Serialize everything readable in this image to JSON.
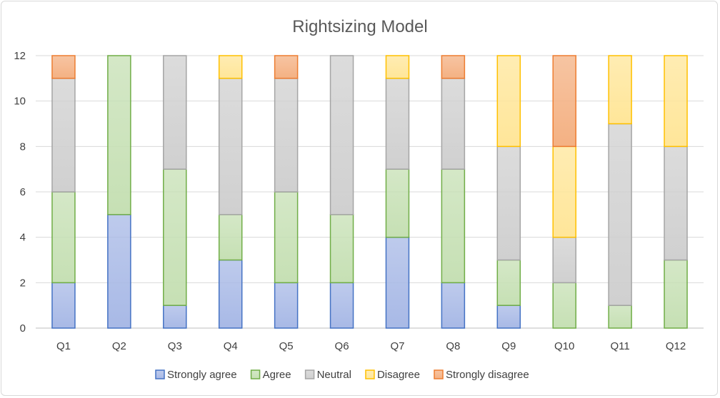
{
  "chart_data": {
    "type": "bar",
    "stacked": true,
    "title": "Rightsizing  Model",
    "xlabel": "",
    "ylabel": "",
    "categories": [
      "Q1",
      "Q2",
      "Q3",
      "Q4",
      "Q5",
      "Q6",
      "Q7",
      "Q8",
      "Q9",
      "Q10",
      "Q11",
      "Q12"
    ],
    "ylim": [
      0,
      12
    ],
    "yticks": [
      0,
      2,
      4,
      6,
      8,
      10,
      12
    ],
    "grid": true,
    "legend_position": "bottom",
    "series": [
      {
        "name": "Strongly agree",
        "fill": "#a8b9e6",
        "stroke": "#4472c4",
        "values": [
          2,
          5,
          1,
          3,
          2,
          2,
          4,
          2,
          1,
          0,
          0,
          0
        ]
      },
      {
        "name": "Agree",
        "fill": "#c6e0b4",
        "stroke": "#70ad47",
        "values": [
          4,
          7,
          6,
          2,
          4,
          3,
          3,
          5,
          2,
          2,
          1,
          3
        ]
      },
      {
        "name": "Neutral",
        "fill": "#d0d0d0",
        "stroke": "#a5a5a5",
        "values": [
          5,
          0,
          5,
          6,
          5,
          7,
          4,
          4,
          5,
          2,
          8,
          5
        ]
      },
      {
        "name": "Disagree",
        "fill": "#ffe699",
        "stroke": "#ffc000",
        "values": [
          0,
          0,
          0,
          1,
          0,
          0,
          1,
          0,
          4,
          4,
          3,
          4
        ]
      },
      {
        "name": "Strongly disagree",
        "fill": "#f4b183",
        "stroke": "#ed7d31",
        "values": [
          1,
          0,
          0,
          0,
          1,
          0,
          0,
          1,
          0,
          4,
          0,
          0
        ]
      }
    ]
  }
}
